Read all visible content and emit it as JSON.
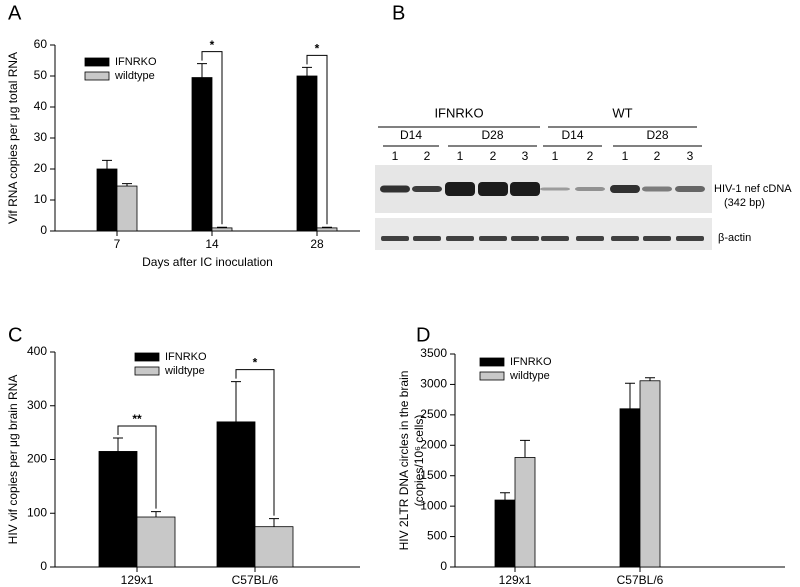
{
  "chart_data": [
    {
      "panel": "A",
      "type": "bar",
      "ylabel": [
        "Vif RNA copies per μg total RNA"
      ],
      "xlabel": "Days after IC inoculation",
      "categories": [
        "7",
        "14",
        "28"
      ],
      "series": [
        {
          "name": "IFNRKO",
          "color": "#000000",
          "values": [
            20,
            49.5,
            50
          ],
          "errors": [
            2.8,
            4.5,
            2.8
          ]
        },
        {
          "name": "wildtype",
          "color": "#c8c8c8",
          "values": [
            14.5,
            1,
            1
          ],
          "errors": [
            0.8,
            0.2,
            0.2
          ]
        }
      ],
      "ylim": [
        0,
        60
      ],
      "yticks": [
        0,
        10,
        20,
        30,
        40,
        50,
        60
      ],
      "annotations": [
        "*",
        "*"
      ]
    },
    {
      "panel": "C",
      "type": "bar",
      "ylabel": [
        "HIV vif copies per μg brain RNA"
      ],
      "categories": [
        "129x1",
        "C57BL/6"
      ],
      "series": [
        {
          "name": "IFNRKO",
          "color": "#000000",
          "values": [
            215,
            270
          ],
          "errors": [
            25,
            75
          ]
        },
        {
          "name": "wildtype",
          "color": "#c8c8c8",
          "values": [
            93,
            75
          ],
          "errors": [
            10,
            15
          ]
        }
      ],
      "ylim": [
        0,
        400
      ],
      "yticks": [
        0,
        100,
        200,
        300,
        400
      ],
      "annotations": [
        "**",
        "*"
      ]
    },
    {
      "panel": "D",
      "type": "bar",
      "ylabel": [
        "HIV 2LTR DNA circles in the brain",
        "(copies/10⁶ cells)"
      ],
      "categories": [
        "129x1",
        "C57BL/6"
      ],
      "series": [
        {
          "name": "IFNRKO",
          "color": "#000000",
          "values": [
            1100,
            2600
          ],
          "errors": [
            120,
            420
          ]
        },
        {
          "name": "wildtype",
          "color": "#c8c8c8",
          "values": [
            1800,
            3060
          ],
          "errors": [
            280,
            50
          ]
        }
      ],
      "ylim": [
        0,
        3500
      ],
      "yticks": [
        0,
        500,
        1000,
        1500,
        2000,
        2500,
        3000,
        3500
      ]
    }
  ],
  "gel": {
    "panel": "B",
    "groups": [
      "IFNRKO",
      "WT"
    ],
    "timepoints": [
      "D14",
      "D28",
      "D14",
      "D28"
    ],
    "lanes": [
      1,
      2,
      1,
      2,
      3,
      1,
      2,
      1,
      2,
      3
    ],
    "labels": [
      "HIV-1 nef cDNA",
      "(342 bp)",
      "β-actin"
    ]
  }
}
